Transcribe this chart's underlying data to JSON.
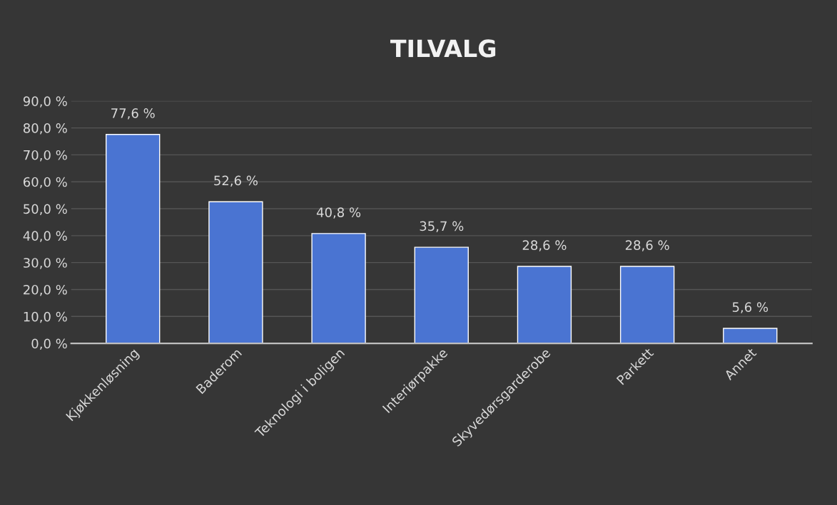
{
  "chart_data": {
    "type": "bar",
    "title": "TILVALG",
    "categories": [
      "Kjøkkenløsning",
      "Baderom",
      "Teknologi i boligen",
      "Interiørpakke",
      "Skyvedørsgarderobe",
      "Parkett",
      "Annet"
    ],
    "values": [
      77.6,
      52.6,
      40.8,
      35.7,
      28.6,
      28.6,
      5.6
    ],
    "value_labels": [
      "77,6 %",
      "52,6 %",
      "40,8 %",
      "35,7 %",
      "28,6 %",
      "28,6 %",
      "5,6 %"
    ],
    "color": "#4a74d2",
    "ylim": [
      0,
      90
    ],
    "yticks": [
      {
        "value": 0,
        "label": "0,0 %"
      },
      {
        "value": 10,
        "label": "10,0 %"
      },
      {
        "value": 20,
        "label": "20,0 %"
      },
      {
        "value": 30,
        "label": "30,0 %"
      },
      {
        "value": 40,
        "label": "40,0 %"
      },
      {
        "value": 50,
        "label": "50,0 %"
      },
      {
        "value": 60,
        "label": "60,0 %"
      },
      {
        "value": 70,
        "label": "70,0 %"
      },
      {
        "value": 80,
        "label": "80,0 %"
      },
      {
        "value": 90,
        "label": "90,0 %"
      }
    ],
    "grid": "y"
  }
}
